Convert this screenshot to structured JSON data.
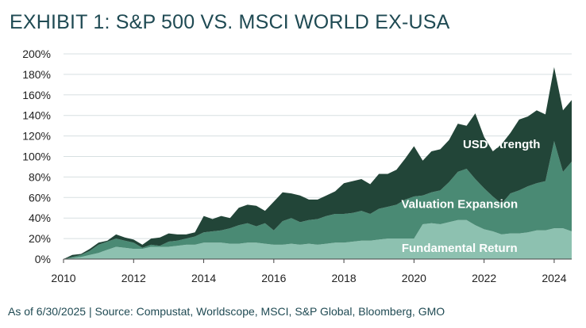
{
  "chart_data": {
    "type": "area",
    "stacked": true,
    "title": "EXHIBIT 1: S&P 500 VS. MSCI WORLD EX-USA",
    "footnote": "As of 6/30/2025 | Source: Compustat, Worldscope, MSCI, S&P Global, Bloomberg, GMO",
    "xlabel": "",
    "ylabel": "",
    "xlim": [
      2010.0,
      2024.5
    ],
    "ylim": [
      0,
      200
    ],
    "x_ticks": [
      2010,
      2012,
      2014,
      2016,
      2018,
      2020,
      2022,
      2024
    ],
    "x_tick_labels": [
      "2010",
      "2012",
      "2014",
      "2016",
      "2018",
      "2020",
      "2022",
      "2024"
    ],
    "y_ticks": [
      0,
      20,
      40,
      60,
      80,
      100,
      120,
      140,
      160,
      180,
      200
    ],
    "y_tick_labels": [
      "0%",
      "20%",
      "40%",
      "60%",
      "80%",
      "100%",
      "120%",
      "140%",
      "160%",
      "180%",
      "200%"
    ],
    "grid": "horizontal",
    "x": [
      2010.0,
      2010.25,
      2010.5,
      2010.75,
      2011.0,
      2011.25,
      2011.5,
      2011.75,
      2012.0,
      2012.25,
      2012.5,
      2012.75,
      2013.0,
      2013.25,
      2013.5,
      2013.75,
      2014.0,
      2014.25,
      2014.5,
      2014.75,
      2015.0,
      2015.25,
      2015.5,
      2015.75,
      2016.0,
      2016.25,
      2016.5,
      2016.75,
      2017.0,
      2017.25,
      2017.5,
      2017.75,
      2018.0,
      2018.25,
      2018.5,
      2018.75,
      2019.0,
      2019.25,
      2019.5,
      2019.75,
      2020.0,
      2020.25,
      2020.5,
      2020.75,
      2021.0,
      2021.25,
      2021.5,
      2021.75,
      2022.0,
      2022.25,
      2022.5,
      2022.75,
      2023.0,
      2023.25,
      2023.5,
      2023.75,
      2024.0,
      2024.25,
      2024.5
    ],
    "series": [
      {
        "name": "Fundamental Return",
        "color": "#8dc1b0",
        "values": [
          0,
          1,
          2,
          4,
          6,
          9,
          12,
          11,
          10,
          10,
          12,
          12,
          12,
          13,
          14,
          14,
          16,
          16,
          16,
          15,
          15,
          16,
          16,
          15,
          14,
          14,
          15,
          14,
          15,
          14,
          15,
          16,
          16,
          17,
          18,
          18,
          19,
          20,
          20,
          20,
          20,
          34,
          35,
          34,
          36,
          38,
          38,
          33,
          29,
          27,
          24,
          25,
          25,
          26,
          28,
          28,
          30,
          30,
          27
        ]
      },
      {
        "name": "Valuation Expansion",
        "color": "#4a8a74",
        "values": [
          0,
          1,
          2,
          4,
          8,
          8,
          8,
          7,
          6,
          1,
          2,
          1,
          5,
          5,
          6,
          8,
          10,
          11,
          12,
          15,
          18,
          19,
          16,
          20,
          14,
          23,
          25,
          22,
          23,
          25,
          27,
          28,
          28,
          28,
          29,
          26,
          30,
          31,
          33,
          38,
          41,
          28,
          30,
          33,
          39,
          47,
          50,
          45,
          40,
          34,
          30,
          39,
          42,
          45,
          46,
          48,
          85,
          55,
          68
        ]
      },
      {
        "name": "USD Strength",
        "color": "#224538",
        "values": [
          0,
          2,
          1,
          2,
          2,
          1,
          4,
          3,
          3,
          3,
          6,
          8,
          8,
          6,
          4,
          4,
          16,
          12,
          14,
          10,
          17,
          18,
          20,
          12,
          28,
          28,
          24,
          26,
          20,
          19,
          20,
          22,
          30,
          31,
          31,
          29,
          34,
          32,
          34,
          40,
          49,
          34,
          40,
          40,
          41,
          47,
          42,
          64,
          50,
          44,
          58,
          59,
          69,
          68,
          71,
          65,
          72,
          60,
          60
        ]
      }
    ],
    "series_labels": [
      {
        "series": "USD Strength",
        "text": "USD Strength",
        "x": 2022.5,
        "y": 108
      },
      {
        "series": "Valuation Expansion",
        "text": "Valuation Expansion",
        "x": 2021.3,
        "y": 50
      },
      {
        "series": "Fundamental Return",
        "text": "Fundamental Return",
        "x": 2021.3,
        "y": 7
      }
    ]
  }
}
